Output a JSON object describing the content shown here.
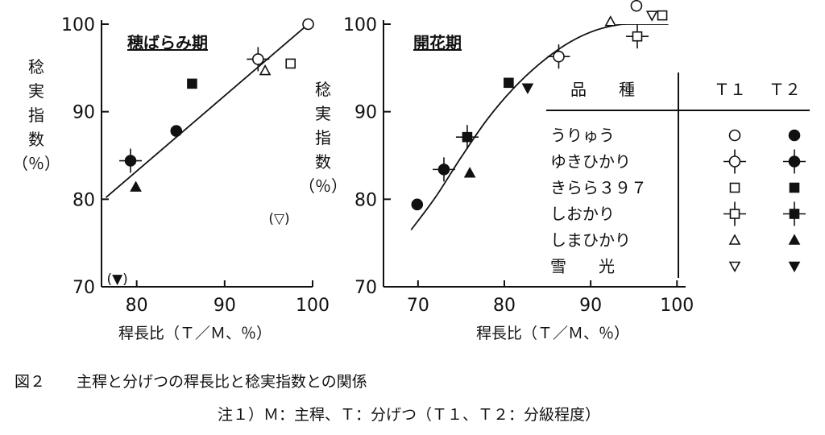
{
  "caption": {
    "label": "図２",
    "title": "主稈と分げつの稈長比と稔実指数との関係",
    "note": "注１）Ｍ：主稈、Ｔ：分げつ（Ｔ１、Ｔ２：分級程度）"
  },
  "legend": {
    "header_variety": "品　　種",
    "header_t1": "Ｔ１",
    "header_t2": "Ｔ２",
    "rows": [
      {
        "name": "うりゅう",
        "t1": "open-circle",
        "t2": "filled-circle"
      },
      {
        "name": "ゆきひかり",
        "t1": "open-circle-cross",
        "t2": "filled-circle-cross"
      },
      {
        "name": "きらら３９７",
        "t1": "open-square",
        "t2": "filled-square"
      },
      {
        "name": "しおかり",
        "t1": "open-square-cross",
        "t2": "filled-square-cross"
      },
      {
        "name": "しまひかり",
        "t1": "open-triangle-up",
        "t2": "filled-triangle-up"
      },
      {
        "name": "雪　　光",
        "t1": "open-triangle-down",
        "t2": "filled-triangle-down"
      }
    ]
  },
  "chart_data": [
    {
      "type": "scatter",
      "title": "穂ばらみ期",
      "xlabel": "稈長比（Ｔ／Ｍ、％）",
      "ylabel": "稔実指数（％）",
      "xlim": [
        76,
        100
      ],
      "ylim": [
        70,
        100
      ],
      "xticks": [
        "80",
        "90",
        "100"
      ],
      "yticks": [
        "70",
        "80",
        "90",
        "100"
      ],
      "grid": false,
      "points": [
        {
          "variety": "うりゅう",
          "marker": "open-circle",
          "x": 99.5,
          "y": 100
        },
        {
          "variety": "うりゅう",
          "marker": "filled-circle",
          "x": 84.5,
          "y": 87.8
        },
        {
          "variety": "ゆきひかり",
          "marker": "open-circle-cross",
          "x": 93.8,
          "y": 96
        },
        {
          "variety": "ゆきひかり",
          "marker": "filled-circle-cross",
          "x": 79.3,
          "y": 84.4
        },
        {
          "variety": "きらら３９７",
          "marker": "open-square",
          "x": 97.5,
          "y": 95.5
        },
        {
          "variety": "きらら３９７",
          "marker": "filled-square",
          "x": 86.3,
          "y": 93.2
        },
        {
          "variety": "しまひかり",
          "marker": "open-triangle-up",
          "x": 94.6,
          "y": 94.7
        },
        {
          "variety": "しまひかり",
          "marker": "filled-triangle-up",
          "x": 79.9,
          "y": 81.4
        }
      ],
      "excluded_points": [
        {
          "label": "(▽)",
          "variety": "雪　　光",
          "x": 96.2,
          "y": 77.9
        },
        {
          "label": "(▼)",
          "variety": "雪　　光",
          "x": 77.8,
          "y": 71.0
        }
      ],
      "fit": {
        "kind": "linear",
        "points": [
          [
            76.5,
            80.2
          ],
          [
            99.5,
            100
          ]
        ]
      }
    },
    {
      "type": "scatter",
      "title": "開花期",
      "xlabel": "稈長比（Ｔ／Ｍ、％）",
      "ylabel": "稔実指数（％）",
      "xlim": [
        66,
        101
      ],
      "ylim": [
        70,
        100
      ],
      "xticks": [
        "70",
        "80",
        "90",
        "100"
      ],
      "yticks": [
        "70",
        "80",
        "90",
        "100"
      ],
      "grid": false,
      "points": [
        {
          "variety": "うりゅう",
          "marker": "open-circle",
          "x": 95.3,
          "y": 102.1
        },
        {
          "variety": "うりゅう",
          "marker": "filled-circle",
          "x": 69.9,
          "y": 79.4
        },
        {
          "variety": "ゆきひかり",
          "marker": "open-circle-cross",
          "x": 86.3,
          "y": 96.3
        },
        {
          "variety": "ゆきひかり",
          "marker": "filled-circle-cross",
          "x": 73.0,
          "y": 83.4
        },
        {
          "variety": "きらら３９７",
          "marker": "open-square",
          "x": 98.3,
          "y": 101.0
        },
        {
          "variety": "きらら３９７",
          "marker": "filled-square",
          "x": 80.5,
          "y": 93.3
        },
        {
          "variety": "しおかり",
          "marker": "open-square-cross",
          "x": 95.4,
          "y": 98.6
        },
        {
          "variety": "しおかり",
          "marker": "filled-square-cross",
          "x": 75.7,
          "y": 87.1
        },
        {
          "variety": "しまひかり",
          "marker": "open-triangle-up",
          "x": 92.3,
          "y": 100.3
        },
        {
          "variety": "しまひかり",
          "marker": "filled-triangle-up",
          "x": 76.0,
          "y": 83.0
        },
        {
          "variety": "雪　　光",
          "marker": "open-triangle-down",
          "x": 97.1,
          "y": 101.0
        },
        {
          "variety": "雪　　光",
          "marker": "filled-triangle-down",
          "x": 82.7,
          "y": 92.7
        }
      ],
      "fit": {
        "kind": "curve",
        "points": [
          [
            69.2,
            76.5
          ],
          [
            72,
            80.2
          ],
          [
            75,
            84.8
          ],
          [
            78,
            89.1
          ],
          [
            81,
            92.6
          ],
          [
            84,
            95.4
          ],
          [
            87,
            97.6
          ],
          [
            90,
            99.1
          ],
          [
            93,
            99.9
          ],
          [
            95,
            100
          ],
          [
            99,
            100
          ]
        ]
      }
    }
  ]
}
